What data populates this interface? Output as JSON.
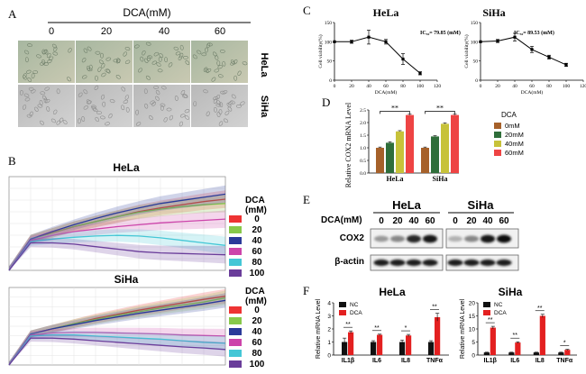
{
  "panel_labels": {
    "a": "A",
    "b": "B",
    "c": "C",
    "d": "D",
    "e": "E",
    "f": "F"
  },
  "colors": {
    "dca_0": "#ee3333",
    "dca_20": "#88c94a",
    "dca_40": "#2a3a9a",
    "dca_60": "#cc44aa",
    "dca_80": "#44c7d6",
    "dca_100": "#6a3d9a",
    "bar_0": "#a6612a",
    "bar_20": "#2f6e3a",
    "bar_40": "#c7c23a",
    "bar_60": "#ee4444",
    "nc": "#111111",
    "dca": "#e32020"
  },
  "panel_a": {
    "header": "DCA(mM)",
    "concentrations": [
      "0",
      "20",
      "40",
      "60"
    ],
    "rows": [
      "HeLa",
      "SiHa"
    ]
  },
  "chart_data": [
    {
      "id": "B-HeLa",
      "type": "line",
      "title": "HeLa",
      "legend_title_1": "DCA",
      "legend_title_2": "(mM)",
      "x": [
        0,
        10,
        20,
        30,
        40,
        50,
        60,
        70,
        80,
        90,
        100
      ],
      "ylim": [
        0,
        1.5
      ],
      "series": [
        {
          "name": "0",
          "values": [
            0,
            0.5,
            0.6,
            0.7,
            0.78,
            0.86,
            0.94,
            1.0,
            1.05,
            1.1,
            1.14
          ]
        },
        {
          "name": "20",
          "values": [
            0,
            0.5,
            0.6,
            0.7,
            0.78,
            0.86,
            0.93,
            0.98,
            1.02,
            1.05,
            1.07
          ]
        },
        {
          "name": "40",
          "values": [
            0,
            0.5,
            0.62,
            0.73,
            0.83,
            0.92,
            1.0,
            1.07,
            1.12,
            1.17,
            1.22
          ]
        },
        {
          "name": "60",
          "values": [
            0,
            0.48,
            0.56,
            0.62,
            0.66,
            0.7,
            0.73,
            0.76,
            0.78,
            0.8,
            0.82
          ]
        },
        {
          "name": "80",
          "values": [
            0,
            0.46,
            0.5,
            0.53,
            0.55,
            0.56,
            0.55,
            0.52,
            0.48,
            0.44,
            0.4
          ]
        },
        {
          "name": "100",
          "values": [
            0,
            0.44,
            0.44,
            0.42,
            0.38,
            0.34,
            0.3,
            0.28,
            0.27,
            0.26,
            0.25
          ]
        }
      ]
    },
    {
      "id": "B-SiHa",
      "type": "line",
      "title": "SiHa",
      "legend_title_1": "DCA",
      "legend_title_2": "(mM)",
      "x": [
        0,
        10,
        20,
        30,
        40,
        50,
        60,
        70,
        80,
        90,
        100
      ],
      "ylim": [
        0,
        1.5
      ],
      "series": [
        {
          "name": "0",
          "values": [
            0,
            0.6,
            0.7,
            0.8,
            0.9,
            0.98,
            1.06,
            1.13,
            1.2,
            1.27,
            1.33
          ]
        },
        {
          "name": "20",
          "values": [
            0,
            0.6,
            0.7,
            0.8,
            0.88,
            0.96,
            1.03,
            1.1,
            1.16,
            1.22,
            1.3
          ]
        },
        {
          "name": "40",
          "values": [
            0,
            0.6,
            0.7,
            0.78,
            0.86,
            0.93,
            1.0,
            1.06,
            1.12,
            1.18,
            1.25
          ]
        },
        {
          "name": "60",
          "values": [
            0,
            0.58,
            0.62,
            0.63,
            0.63,
            0.62,
            0.61,
            0.6,
            0.58,
            0.57,
            0.56
          ]
        },
        {
          "name": "80",
          "values": [
            0,
            0.56,
            0.58,
            0.58,
            0.56,
            0.54,
            0.52,
            0.5,
            0.47,
            0.44,
            0.42
          ]
        },
        {
          "name": "100",
          "values": [
            0,
            0.52,
            0.52,
            0.5,
            0.47,
            0.44,
            0.41,
            0.38,
            0.35,
            0.33,
            0.3
          ]
        }
      ]
    },
    {
      "id": "C-HeLa",
      "type": "line",
      "title": "HeLa",
      "ic50": "IC₅₀= 79.85 (mM)",
      "xlabel": "DCA(mM)",
      "ylabel": "Cell viability(%)",
      "x": [
        0,
        20,
        40,
        60,
        80,
        100
      ],
      "y": [
        100,
        100,
        112,
        100,
        55,
        18
      ],
      "err": [
        0,
        4,
        18,
        6,
        14,
        4
      ],
      "xlim": [
        0,
        120
      ],
      "ylim": [
        0,
        150
      ],
      "xticks": [
        0,
        20,
        40,
        60,
        80,
        100,
        120
      ],
      "yticks": [
        0,
        50,
        100,
        150
      ]
    },
    {
      "id": "C-SiHa",
      "type": "line",
      "title": "SiHa",
      "ic50": "IC₅₀= 89.53 (mM)",
      "xlabel": "DCA(mM)",
      "ylabel": "Cell viability(%)",
      "x": [
        0,
        20,
        40,
        60,
        80,
        100
      ],
      "y": [
        100,
        102,
        112,
        80,
        60,
        40
      ],
      "err": [
        0,
        4,
        10,
        8,
        5,
        4
      ],
      "xlim": [
        0,
        120
      ],
      "ylim": [
        0,
        150
      ],
      "xticks": [
        0,
        20,
        40,
        60,
        80,
        100,
        120
      ],
      "yticks": [
        0,
        50,
        100,
        150
      ]
    },
    {
      "id": "D",
      "type": "bar",
      "ylabel": "Relative COX2 mRNA Level",
      "categories": [
        "HeLa",
        "SiHa"
      ],
      "ylim": [
        0,
        2.5
      ],
      "yticks": [
        0.0,
        0.5,
        1.0,
        1.5,
        2.0,
        2.5
      ],
      "legend_title": "DCA",
      "series": [
        {
          "name": "0mM",
          "values": [
            1.0,
            1.0
          ],
          "err": [
            0.03,
            0.03
          ]
        },
        {
          "name": "20mM",
          "values": [
            1.2,
            1.45
          ],
          "err": [
            0.04,
            0.03
          ]
        },
        {
          "name": "40mM",
          "values": [
            1.65,
            1.95
          ],
          "err": [
            0.03,
            0.04
          ]
        },
        {
          "name": "60mM",
          "values": [
            2.3,
            2.3
          ],
          "err": [
            0.03,
            0.03
          ]
        }
      ],
      "sig": [
        "**",
        "**"
      ]
    },
    {
      "id": "F-HeLa",
      "type": "bar",
      "title": "HeLa",
      "ylabel": "Relative mRNA Level",
      "categories": [
        "IL1β",
        "IL6",
        "IL8",
        "TNFα"
      ],
      "ylim": [
        0,
        4
      ],
      "yticks": [
        0,
        1,
        2,
        3,
        4
      ],
      "series": [
        {
          "name": "NC",
          "values": [
            1.0,
            1.0,
            1.0,
            1.0
          ],
          "err": [
            0.3,
            0.1,
            0.15,
            0.1
          ]
        },
        {
          "name": "DCA",
          "values": [
            1.75,
            1.55,
            1.5,
            2.9
          ],
          "err": [
            0.1,
            0.05,
            0.08,
            0.3
          ]
        }
      ],
      "sig": [
        "**",
        "**",
        "*",
        "**"
      ]
    },
    {
      "id": "F-SiHa",
      "type": "bar",
      "title": "SiHa",
      "ylabel": "Relative mRNA Level",
      "categories": [
        "IL1β",
        "IL6",
        "IL8",
        "TNFα"
      ],
      "ylim": [
        0,
        20
      ],
      "yticks": [
        0,
        5,
        10,
        15,
        20
      ],
      "series": [
        {
          "name": "NC",
          "values": [
            1.0,
            1.0,
            1.0,
            1.0
          ],
          "err": [
            0.1,
            0.1,
            0.1,
            0.1
          ]
        },
        {
          "name": "DCA",
          "values": [
            10.5,
            4.8,
            15.0,
            2.0
          ],
          "err": [
            0.5,
            0.3,
            0.6,
            0.2
          ]
        }
      ],
      "sig": [
        "**",
        "**",
        "**",
        "*"
      ]
    }
  ],
  "panel_e": {
    "groups": [
      "HeLa",
      "SiHa"
    ],
    "row_label": "DCA(mM)",
    "lanes": [
      "0",
      "20",
      "40",
      "60"
    ],
    "bands": [
      "COX2",
      "β-actin"
    ],
    "intensity": {
      "HeLa": [
        0.25,
        0.35,
        0.85,
        0.95
      ],
      "SiHa": [
        0.12,
        0.35,
        0.95,
        0.98
      ]
    }
  }
}
